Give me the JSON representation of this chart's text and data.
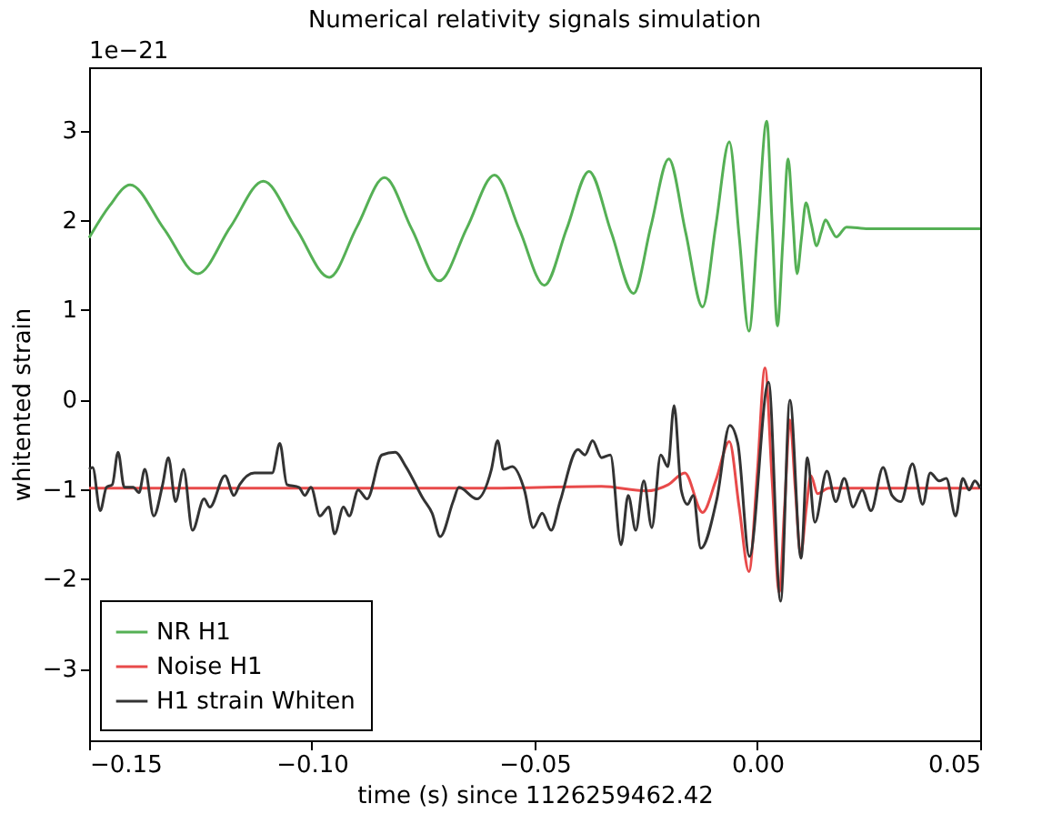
{
  "chart_data": {
    "type": "line",
    "title": "Numerical relativity signals simulation",
    "xlabel": "time (s) since 1126259462.42",
    "ylabel": "whitented strain",
    "annotations": [
      "1e−21"
    ],
    "xlim": [
      -0.15,
      0.05
    ],
    "ylim": [
      -3.8,
      3.7
    ],
    "xticks": [
      {
        "value": -0.15,
        "label": "−0.15"
      },
      {
        "value": -0.1,
        "label": "−0.10"
      },
      {
        "value": -0.05,
        "label": "−0.05"
      },
      {
        "value": 0,
        "label": "0.00"
      },
      {
        "value": 0.05,
        "label": "0.05"
      }
    ],
    "yticks": [
      {
        "value": -3,
        "label": "−3"
      },
      {
        "value": -2,
        "label": "−2"
      },
      {
        "value": -1,
        "label": "−1"
      },
      0,
      1,
      2,
      3
    ],
    "grid": false,
    "legend": "bottom left",
    "marker": "none",
    "line_style": "solid",
    "series": [
      {
        "name": "NR H1",
        "color": "#55b055",
        "x": [
          -0.15,
          -0.1455,
          -0.1408,
          -0.1332,
          -0.1256,
          -0.1183,
          -0.1109,
          -0.1035,
          -0.0961,
          -0.0899,
          -0.0837,
          -0.0776,
          -0.0714,
          -0.0652,
          -0.059,
          -0.0534,
          -0.0478,
          -0.0428,
          -0.0378,
          -0.0328,
          -0.0278,
          -0.0239,
          -0.0199,
          -0.0161,
          -0.0123,
          -0.0093,
          -0.0063,
          -0.0041,
          -0.0019,
          0.0001,
          0.0021,
          0.0033,
          0.0045,
          0.0057,
          0.0069,
          0.0079,
          0.0089,
          0.0099,
          0.0109,
          0.0121,
          0.0133,
          0.0143,
          0.0153,
          0.0165,
          0.0177,
          0.02,
          0.0249,
          0.05
        ],
        "values": [
          1.8,
          2.15,
          2.39,
          1.9,
          1.4,
          1.92,
          2.43,
          1.9,
          1.36,
          1.92,
          2.47,
          1.9,
          1.32,
          1.91,
          2.5,
          1.89,
          1.27,
          1.9,
          2.54,
          1.86,
          1.18,
          1.93,
          2.68,
          1.86,
          1.03,
          1.95,
          2.87,
          1.82,
          0.76,
          1.93,
          3.1,
          1.96,
          0.82,
          1.75,
          2.68,
          2.04,
          1.4,
          1.8,
          2.19,
          1.95,
          1.71,
          1.86,
          2.0,
          1.9,
          1.81,
          1.92,
          1.9,
          1.9
        ]
      },
      {
        "name": "Noise H1",
        "color": "#e84a4a",
        "x": [
          -0.15,
          -0.06,
          -0.035,
          -0.025,
          -0.02,
          -0.0163,
          -0.0123,
          -0.0093,
          -0.0063,
          -0.0041,
          -0.0019,
          0.0,
          0.0017,
          0.0033,
          0.0049,
          0.0061,
          0.0073,
          0.0085,
          0.0097,
          0.011,
          0.012,
          0.0135,
          0.016,
          0.05
        ],
        "values": [
          -0.99,
          -0.99,
          -0.97,
          -1.02,
          -0.95,
          -0.82,
          -1.26,
          -0.9,
          -0.47,
          -1.2,
          -1.92,
          -0.8,
          0.35,
          -0.9,
          -2.15,
          -1.2,
          -0.23,
          -1.0,
          -1.73,
          -1.2,
          -0.85,
          -1.05,
          -0.99,
          -0.99
        ]
      },
      {
        "name": "H1 strain Whiten",
        "color": "#333333",
        "x": [
          -0.15,
          -0.1492,
          -0.1475,
          -0.1461,
          -0.1448,
          -0.1435,
          -0.1421,
          -0.1401,
          -0.1388,
          -0.1375,
          -0.1355,
          -0.1335,
          -0.1322,
          -0.1306,
          -0.1288,
          -0.1268,
          -0.1242,
          -0.1229,
          -0.1195,
          -0.1175,
          -0.1162,
          -0.1129,
          -0.1089,
          -0.1072,
          -0.1056,
          -0.1029,
          -0.1016,
          -0.1002,
          -0.0982,
          -0.0962,
          -0.0949,
          -0.0929,
          -0.0916,
          -0.0896,
          -0.0876,
          -0.0843,
          -0.0813,
          -0.0789,
          -0.075,
          -0.073,
          -0.0712,
          -0.0683,
          -0.067,
          -0.063,
          -0.0597,
          -0.0583,
          -0.057,
          -0.055,
          -0.0523,
          -0.0503,
          -0.0483,
          -0.0463,
          -0.0443,
          -0.0403,
          -0.0387,
          -0.037,
          -0.035,
          -0.033,
          -0.0306,
          -0.029,
          -0.0273,
          -0.0255,
          -0.0237,
          -0.0217,
          -0.0201,
          -0.0187,
          -0.0171,
          -0.0157,
          -0.0144,
          -0.0127,
          -0.0091,
          -0.0062,
          -0.0044,
          -0.0018,
          0.0025,
          0.0052,
          0.0073,
          0.0098,
          0.0112,
          0.0129,
          0.0156,
          0.0176,
          0.0195,
          0.0215,
          0.0235,
          0.0255,
          0.0282,
          0.0302,
          0.0322,
          0.0348,
          0.0371,
          0.0388,
          0.0408,
          0.0424,
          0.0445,
          0.0461,
          0.0475,
          0.0488,
          0.05
        ],
        "values": [
          -0.78,
          -0.76,
          -1.24,
          -0.98,
          -0.95,
          -0.59,
          -0.98,
          -0.98,
          -1.04,
          -0.78,
          -1.3,
          -0.95,
          -0.65,
          -1.14,
          -0.78,
          -1.46,
          -1.11,
          -1.2,
          -0.85,
          -1.07,
          -0.95,
          -0.82,
          -0.82,
          -0.49,
          -0.95,
          -0.98,
          -1.07,
          -0.98,
          -1.3,
          -1.2,
          -1.5,
          -1.2,
          -1.3,
          -1.01,
          -1.11,
          -0.62,
          -0.59,
          -0.75,
          -1.11,
          -1.27,
          -1.53,
          -1.14,
          -0.98,
          -1.11,
          -0.78,
          -0.46,
          -0.78,
          -0.75,
          -1.01,
          -1.43,
          -1.27,
          -1.46,
          -1.14,
          -0.56,
          -0.62,
          -0.46,
          -0.65,
          -0.62,
          -1.62,
          -1.07,
          -1.46,
          -0.91,
          -1.43,
          -0.62,
          -0.75,
          -0.07,
          -1.01,
          -1.17,
          -1.07,
          -1.66,
          -1.11,
          -0.29,
          -0.49,
          -1.75,
          0.19,
          -2.25,
          -0.01,
          -1.77,
          -0.65,
          -1.37,
          -0.8,
          -1.14,
          -0.88,
          -1.2,
          -1.01,
          -1.24,
          -0.76,
          -1.07,
          -1.14,
          -0.72,
          -1.17,
          -0.82,
          -0.91,
          -0.88,
          -1.3,
          -0.88,
          -1.01,
          -0.91,
          -0.99
        ]
      }
    ]
  }
}
